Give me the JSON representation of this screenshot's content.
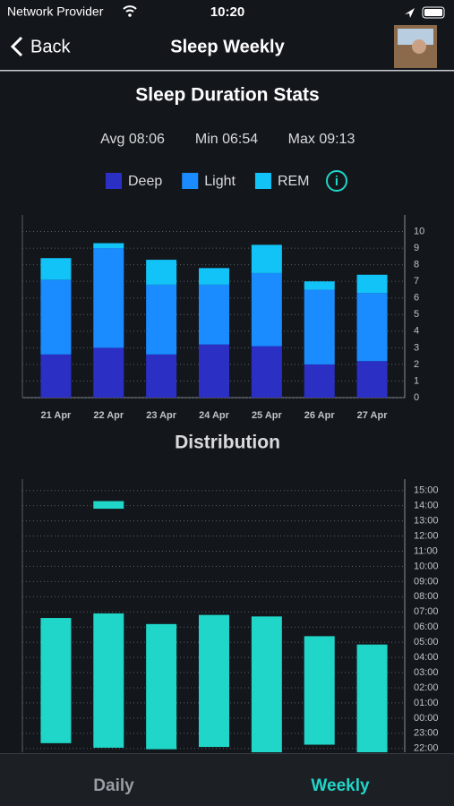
{
  "status_bar": {
    "carrier": "Network Provider",
    "time": "10:20"
  },
  "nav": {
    "back": "Back",
    "title": "Sleep Weekly"
  },
  "header": {
    "title": "Sleep Duration Stats",
    "stats": [
      "Avg 08:06",
      "Min 06:54",
      "Max 09:13"
    ]
  },
  "chart_data": [
    {
      "type": "bar",
      "stacked": true,
      "categories": [
        "21 Apr",
        "22 Apr",
        "23 Apr",
        "24 Apr",
        "25 Apr",
        "26 Apr",
        "27 Apr"
      ],
      "series": [
        {
          "name": "Deep",
          "color": "#2b2fc4",
          "values": [
            2.6,
            3.0,
            2.6,
            3.2,
            3.1,
            2.0,
            2.2
          ]
        },
        {
          "name": "Light",
          "color": "#1a8cff",
          "values": [
            4.5,
            6.0,
            4.2,
            3.6,
            4.4,
            4.5,
            4.1
          ]
        },
        {
          "name": "REM",
          "color": "#12c3f7",
          "values": [
            1.3,
            0.3,
            1.5,
            1.0,
            1.7,
            0.5,
            1.1
          ]
        }
      ],
      "ylim": [
        0,
        11
      ],
      "yticks": [
        0,
        1,
        2,
        3,
        4,
        5,
        6,
        7,
        8,
        9,
        10
      ],
      "grid": true
    },
    {
      "type": "range",
      "title": "Distribution",
      "color": "#1fd6c8",
      "x": [
        0,
        1,
        1,
        2,
        3,
        4,
        5,
        6
      ],
      "xlim": [
        -0.5,
        6.5
      ],
      "start": [
        -1.65,
        13.8,
        -1.95,
        -2.05,
        -1.9,
        -2.3,
        -1.75,
        -2.3
      ],
      "end": [
        6.6,
        14.3,
        6.9,
        6.2,
        6.8,
        6.7,
        5.4,
        4.85
      ],
      "ylim": [
        -2.25,
        15.75
      ],
      "grid": true,
      "yticks": [
        {
          "value": -2,
          "label": "22:00"
        },
        {
          "value": -1,
          "label": "23:00"
        },
        {
          "value": 0,
          "label": "00:00"
        },
        {
          "value": 1,
          "label": "01:00"
        },
        {
          "value": 2,
          "label": "02:00"
        },
        {
          "value": 3,
          "label": "03:00"
        },
        {
          "value": 4,
          "label": "04:00"
        },
        {
          "value": 5,
          "label": "05:00"
        },
        {
          "value": 6,
          "label": "06:00"
        },
        {
          "value": 7,
          "label": "07:00"
        },
        {
          "value": 8,
          "label": "08:00"
        },
        {
          "value": 9,
          "label": "09:00"
        },
        {
          "value": 10,
          "label": "10:00"
        },
        {
          "value": 11,
          "label": "11:00"
        },
        {
          "value": 12,
          "label": "12:00"
        },
        {
          "value": 13,
          "label": "13:00"
        },
        {
          "value": 14,
          "label": "14:00"
        },
        {
          "value": 15,
          "label": "15:00"
        }
      ]
    }
  ],
  "tabs": [
    "Daily",
    "Weekly"
  ]
}
